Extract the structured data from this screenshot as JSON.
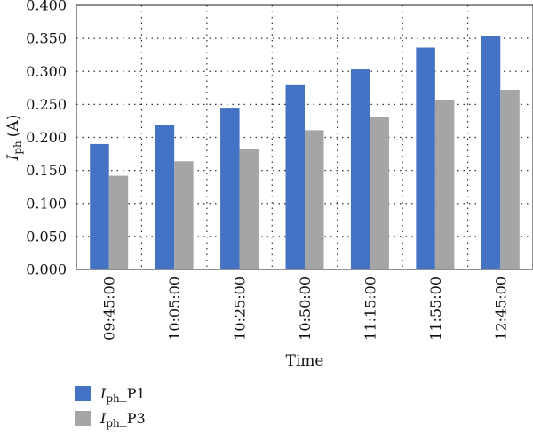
{
  "chart_data": {
    "type": "bar",
    "xlabel": "Time",
    "ylabel": {
      "symbol": "I",
      "subscript": "ph",
      "unit": "(A)"
    },
    "categories": [
      "09:45:00",
      "10:05:00",
      "10:25:00",
      "10:50:00",
      "11:15:00",
      "11:55:00",
      "12:45:00"
    ],
    "ylim": [
      0,
      0.4
    ],
    "yticks": [
      "0.000",
      "0.050",
      "0.100",
      "0.150",
      "0.200",
      "0.250",
      "0.300",
      "0.350",
      "0.400"
    ],
    "grid": "dotted",
    "legend_position": "bottom-left",
    "series": [
      {
        "name": {
          "symbol": "I",
          "subscript": "ph",
          "suffix": "_P1"
        },
        "color": "#4472c4",
        "values": [
          0.19,
          0.219,
          0.245,
          0.279,
          0.303,
          0.336,
          0.353
        ]
      },
      {
        "name": {
          "symbol": "I",
          "subscript": "ph",
          "suffix": "_P3"
        },
        "color": "#a5a5a5",
        "values": [
          0.142,
          0.164,
          0.183,
          0.211,
          0.231,
          0.257,
          0.272
        ]
      }
    ]
  }
}
